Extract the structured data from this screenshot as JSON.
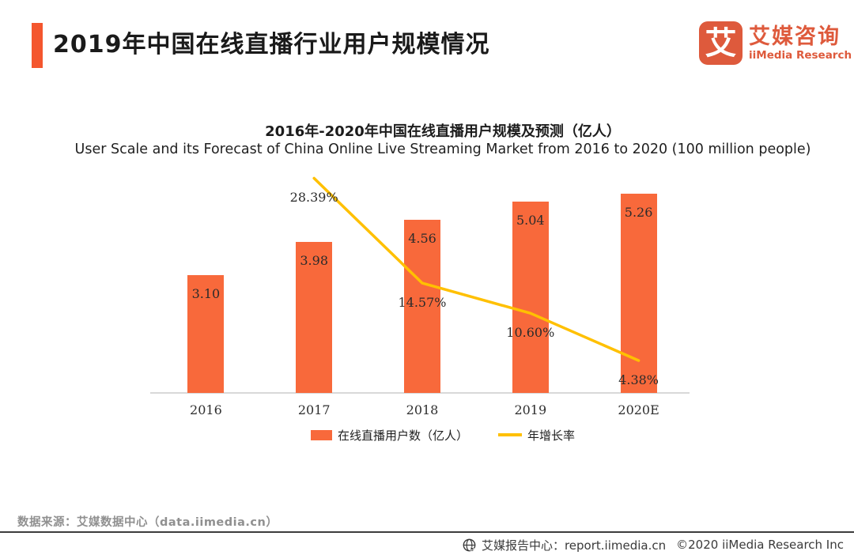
{
  "header": {
    "title": "2019年中国在线直播行业用户规模情况",
    "logo": {
      "mark": "艾",
      "name_cn": "艾媒咨询",
      "name_en": "iiMedia Research"
    }
  },
  "chart_data": {
    "type": "bar",
    "title_cn": "2016年-2020年中国在线直播用户规模及预测（亿人）",
    "title_en": "User Scale and its Forecast of China Online Live Streaming Market from 2016 to 2020 (100 million people)",
    "categories": [
      "2016",
      "2017",
      "2018",
      "2019",
      "2020E"
    ],
    "series": [
      {
        "name": "在线直播用户数（亿人）",
        "type": "bar",
        "values": [
          3.1,
          3.98,
          4.56,
          5.04,
          5.26
        ],
        "labels": [
          "3.10",
          "3.98",
          "4.56",
          "5.04",
          "5.26"
        ],
        "color": "#F8693B"
      },
      {
        "name": "年增长率",
        "type": "line",
        "values": [
          null,
          28.39,
          14.57,
          10.6,
          4.38
        ],
        "labels": [
          "",
          "28.39%",
          "14.57%",
          "10.60%",
          "4.38%"
        ],
        "color": "#FFC000"
      }
    ],
    "ylim_bar": [
      0,
      6
    ],
    "ylim_line": [
      0,
      30
    ],
    "grid": false,
    "legend_position": "bottom"
  },
  "legend": [
    {
      "label": "在线直播用户数（亿人）",
      "swatch": "bar",
      "color": "#F8693B"
    },
    {
      "label": "年增长率",
      "swatch": "line",
      "color": "#FFC000"
    }
  ],
  "footer": {
    "source": "数据来源：艾媒数据中心（data.iimedia.cn）",
    "report_center": "艾媒报告中心：report.iimedia.cn",
    "copyright": "©2020  iiMedia Research Inc"
  },
  "colors": {
    "accent": "#F4562E",
    "bar": "#F8693B",
    "line": "#FFC000",
    "logo": "#DE5A3C",
    "axis": "#d9d9d9"
  }
}
